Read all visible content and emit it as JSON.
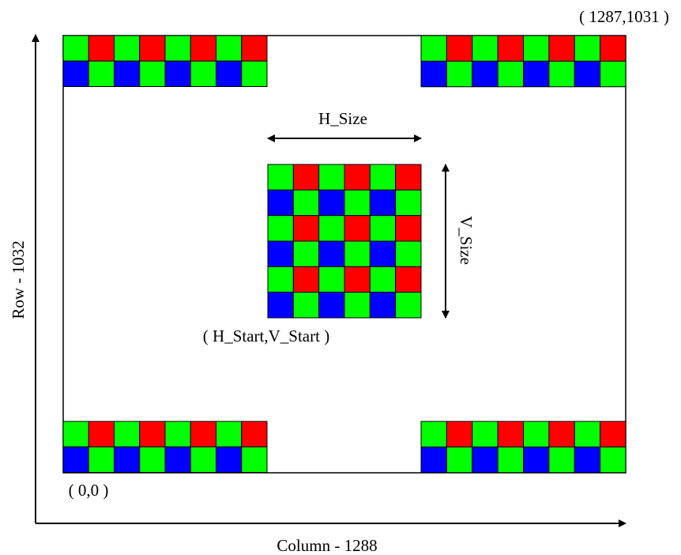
{
  "labels": {
    "top_right_coord": "( 1287,1031 )",
    "h_size": "H_Size",
    "v_size": "V_Size",
    "start_coord": "( H_Start,V_Start )",
    "row_axis": "Row - 1032",
    "origin_coord": "( 0,0 )",
    "column_axis": "Column - 1288"
  },
  "colors": {
    "red": "#ff0000",
    "green": "#00ff00",
    "blue": "#0000ff",
    "line": "#000000",
    "background": "#ffffff"
  },
  "pixel_pattern": {
    "row_even": [
      "green",
      "red"
    ],
    "row_odd": [
      "blue",
      "green"
    ]
  },
  "pixel_blocks": [
    {
      "name": "top-left-bayer-block",
      "rows": 2,
      "cols": 8
    },
    {
      "name": "top-right-bayer-block",
      "rows": 2,
      "cols": 8
    },
    {
      "name": "center-window-bayer-block",
      "rows": 6,
      "cols": 6
    },
    {
      "name": "bottom-left-bayer-block",
      "rows": 2,
      "cols": 8
    },
    {
      "name": "bottom-right-bayer-block",
      "rows": 2,
      "cols": 8
    }
  ]
}
